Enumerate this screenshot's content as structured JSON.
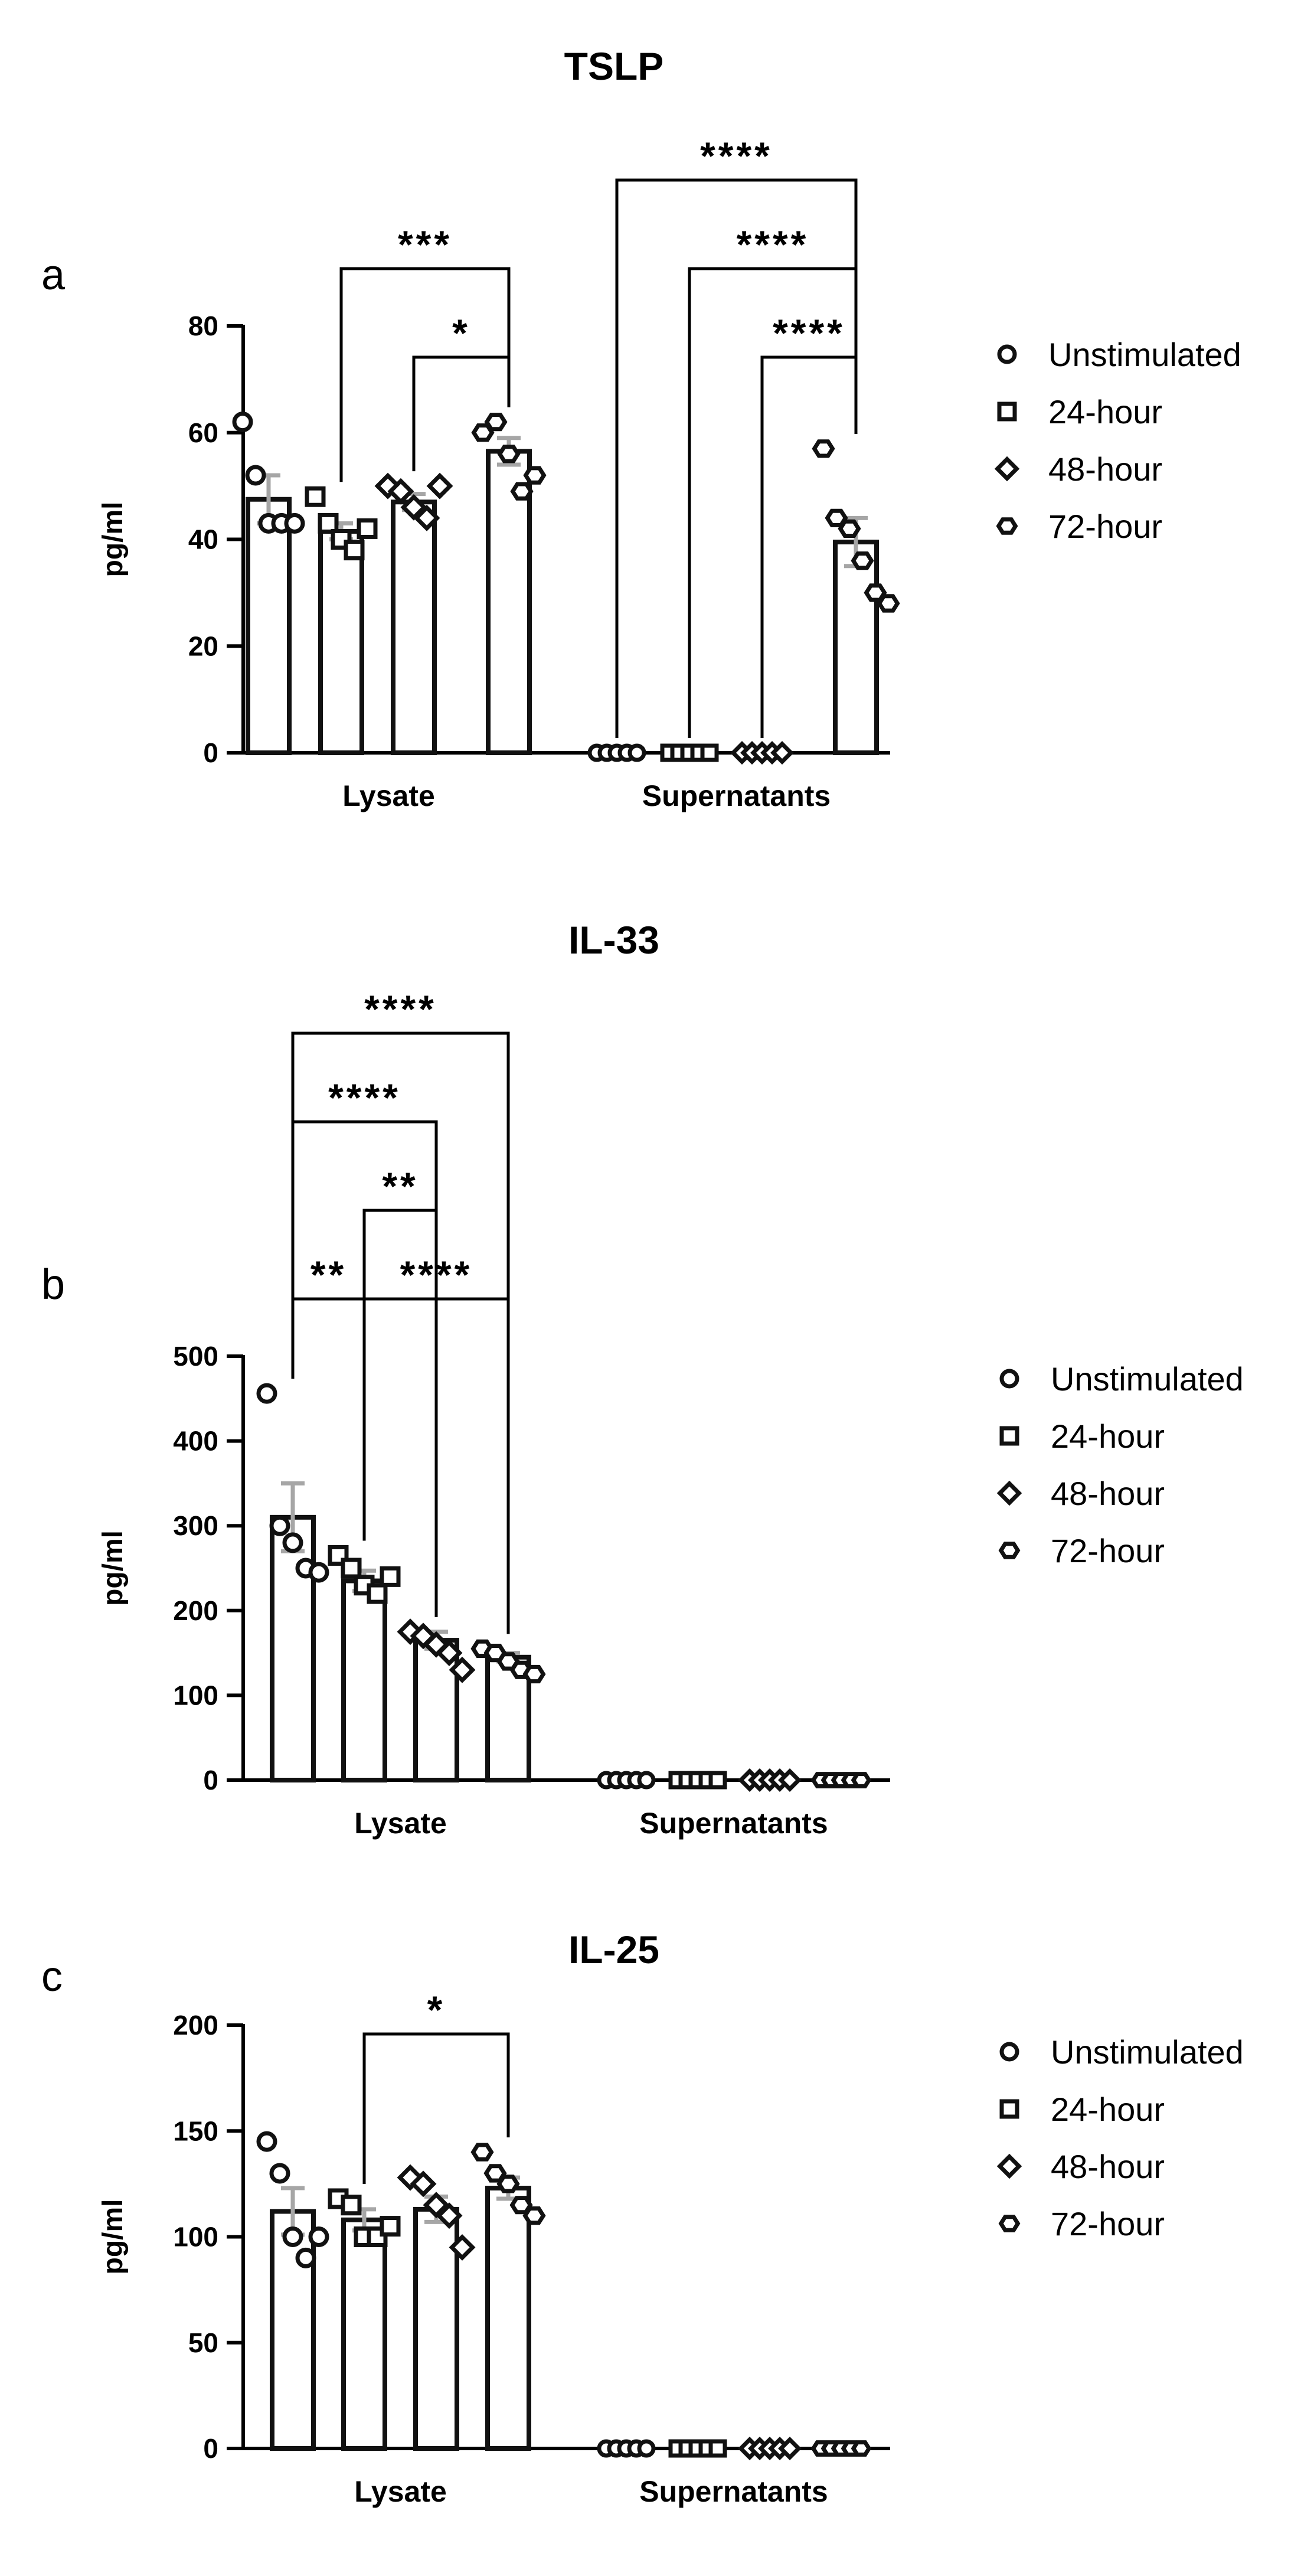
{
  "legend": {
    "entries": [
      "Unstimulated",
      "24-hour",
      "48-hour",
      "72-hour"
    ],
    "markers": [
      "circle",
      "square",
      "diamond",
      "hexagon"
    ]
  },
  "colors": {
    "bar": "#111111",
    "error": "#a6a6a6",
    "marker": "#111111"
  },
  "chart_data": [
    {
      "type": "bar",
      "panel_label": "a",
      "title": "TSLP",
      "ylabel": "pg/ml",
      "ylim": [
        0,
        80
      ],
      "yticks": [
        0,
        20,
        40,
        60,
        80
      ],
      "categories": [
        "Lysate",
        "Supernatants"
      ],
      "series": [
        {
          "name": "Unstimulated",
          "values": [
            47.5,
            0
          ],
          "sem": [
            4.5,
            0
          ],
          "points": [
            [
              62,
              52,
              43,
              43,
              43
            ],
            [
              0,
              0,
              0,
              0,
              0
            ]
          ]
        },
        {
          "name": "24-hour",
          "values": [
            41.5,
            0
          ],
          "sem": [
            1.5,
            0
          ],
          "points": [
            [
              48,
              43,
              40,
              38,
              42
            ],
            [
              0,
              0,
              0,
              0,
              0
            ]
          ]
        },
        {
          "name": "48-hour",
          "values": [
            47,
            0
          ],
          "sem": [
            1.5,
            0
          ],
          "points": [
            [
              50,
              49,
              46,
              44,
              50
            ],
            [
              0,
              0,
              0,
              0,
              0
            ]
          ]
        },
        {
          "name": "72-hour",
          "values": [
            56.5,
            39.5
          ],
          "sem": [
            2.5,
            4.5
          ],
          "points": [
            [
              60,
              62,
              56,
              49,
              52
            ],
            [
              57,
              44,
              42,
              36,
              30,
              28
            ]
          ]
        }
      ],
      "comparisons": [
        {
          "from": [
            0,
            1
          ],
          "to": [
            0,
            3
          ],
          "label": "***"
        },
        {
          "from": [
            0,
            2
          ],
          "to": [
            0,
            3
          ],
          "label": "*"
        },
        {
          "from": [
            1,
            0
          ],
          "to": [
            1,
            3
          ],
          "label": "****"
        },
        {
          "from": [
            1,
            1
          ],
          "to": [
            1,
            3
          ],
          "label": "****"
        },
        {
          "from": [
            1,
            2
          ],
          "to": [
            1,
            3
          ],
          "label": "****"
        }
      ]
    },
    {
      "type": "bar",
      "panel_label": "b",
      "title": "IL-33",
      "ylabel": "pg/ml",
      "ylim": [
        0,
        500
      ],
      "yticks": [
        0,
        100,
        200,
        300,
        400,
        500
      ],
      "categories": [
        "Lysate",
        "Supernatants"
      ],
      "series": [
        {
          "name": "Unstimulated",
          "values": [
            310,
            0
          ],
          "sem": [
            40,
            0
          ],
          "points": [
            [
              456,
              300,
              280,
              250,
              245
            ],
            [
              0,
              0,
              0,
              0,
              0
            ]
          ]
        },
        {
          "name": "24-hour",
          "values": [
            235,
            0
          ],
          "sem": [
            12,
            0
          ],
          "points": [
            [
              265,
              250,
              230,
              220,
              240
            ],
            [
              0,
              0,
              0,
              0,
              0
            ]
          ]
        },
        {
          "name": "48-hour",
          "values": [
            165,
            0
          ],
          "sem": [
            10,
            0
          ],
          "points": [
            [
              175,
              170,
              160,
              150,
              130
            ],
            [
              0,
              0,
              0,
              0,
              0
            ]
          ]
        },
        {
          "name": "72-hour",
          "values": [
            145,
            0
          ],
          "sem": [
            5,
            0
          ],
          "points": [
            [
              155,
              150,
              140,
              130,
              125
            ],
            [
              0,
              0,
              0,
              0,
              0
            ]
          ]
        }
      ],
      "comparisons": [
        {
          "from": [
            0,
            0
          ],
          "to": [
            0,
            3
          ],
          "label": "****"
        },
        {
          "from": [
            0,
            0
          ],
          "to": [
            0,
            2
          ],
          "label": "****"
        },
        {
          "from": [
            0,
            1
          ],
          "to": [
            0,
            2
          ],
          "label": "**"
        },
        {
          "from": [
            0,
            0
          ],
          "to": [
            0,
            1
          ],
          "label": "**"
        },
        {
          "from": [
            0,
            1
          ],
          "to": [
            0,
            3
          ],
          "label": "****"
        }
      ]
    },
    {
      "type": "bar",
      "panel_label": "c",
      "title": "IL-25",
      "ylabel": "pg/ml",
      "ylim": [
        0,
        200
      ],
      "yticks": [
        0,
        50,
        100,
        150,
        200
      ],
      "categories": [
        "Lysate",
        "Supernatants"
      ],
      "series": [
        {
          "name": "Unstimulated",
          "values": [
            112,
            0
          ],
          "sem": [
            11,
            0
          ],
          "points": [
            [
              145,
              130,
              100,
              90,
              100
            ],
            [
              0,
              0,
              0,
              0,
              0
            ]
          ]
        },
        {
          "name": "24-hour",
          "values": [
            108,
            0
          ],
          "sem": [
            5,
            0
          ],
          "points": [
            [
              118,
              115,
              100,
              100,
              105
            ],
            [
              0,
              0,
              0,
              0,
              0
            ]
          ]
        },
        {
          "name": "48-hour",
          "values": [
            113,
            0
          ],
          "sem": [
            6,
            0
          ],
          "points": [
            [
              128,
              125,
              115,
              110,
              95
            ],
            [
              0,
              0,
              0,
              0,
              0
            ]
          ]
        },
        {
          "name": "72-hour",
          "values": [
            123,
            0
          ],
          "sem": [
            5,
            0
          ],
          "points": [
            [
              140,
              130,
              125,
              115,
              110
            ],
            [
              0,
              0,
              0,
              0,
              0
            ]
          ]
        }
      ],
      "comparisons": [
        {
          "from": [
            0,
            1
          ],
          "to": [
            0,
            3
          ],
          "label": "*"
        }
      ]
    }
  ]
}
